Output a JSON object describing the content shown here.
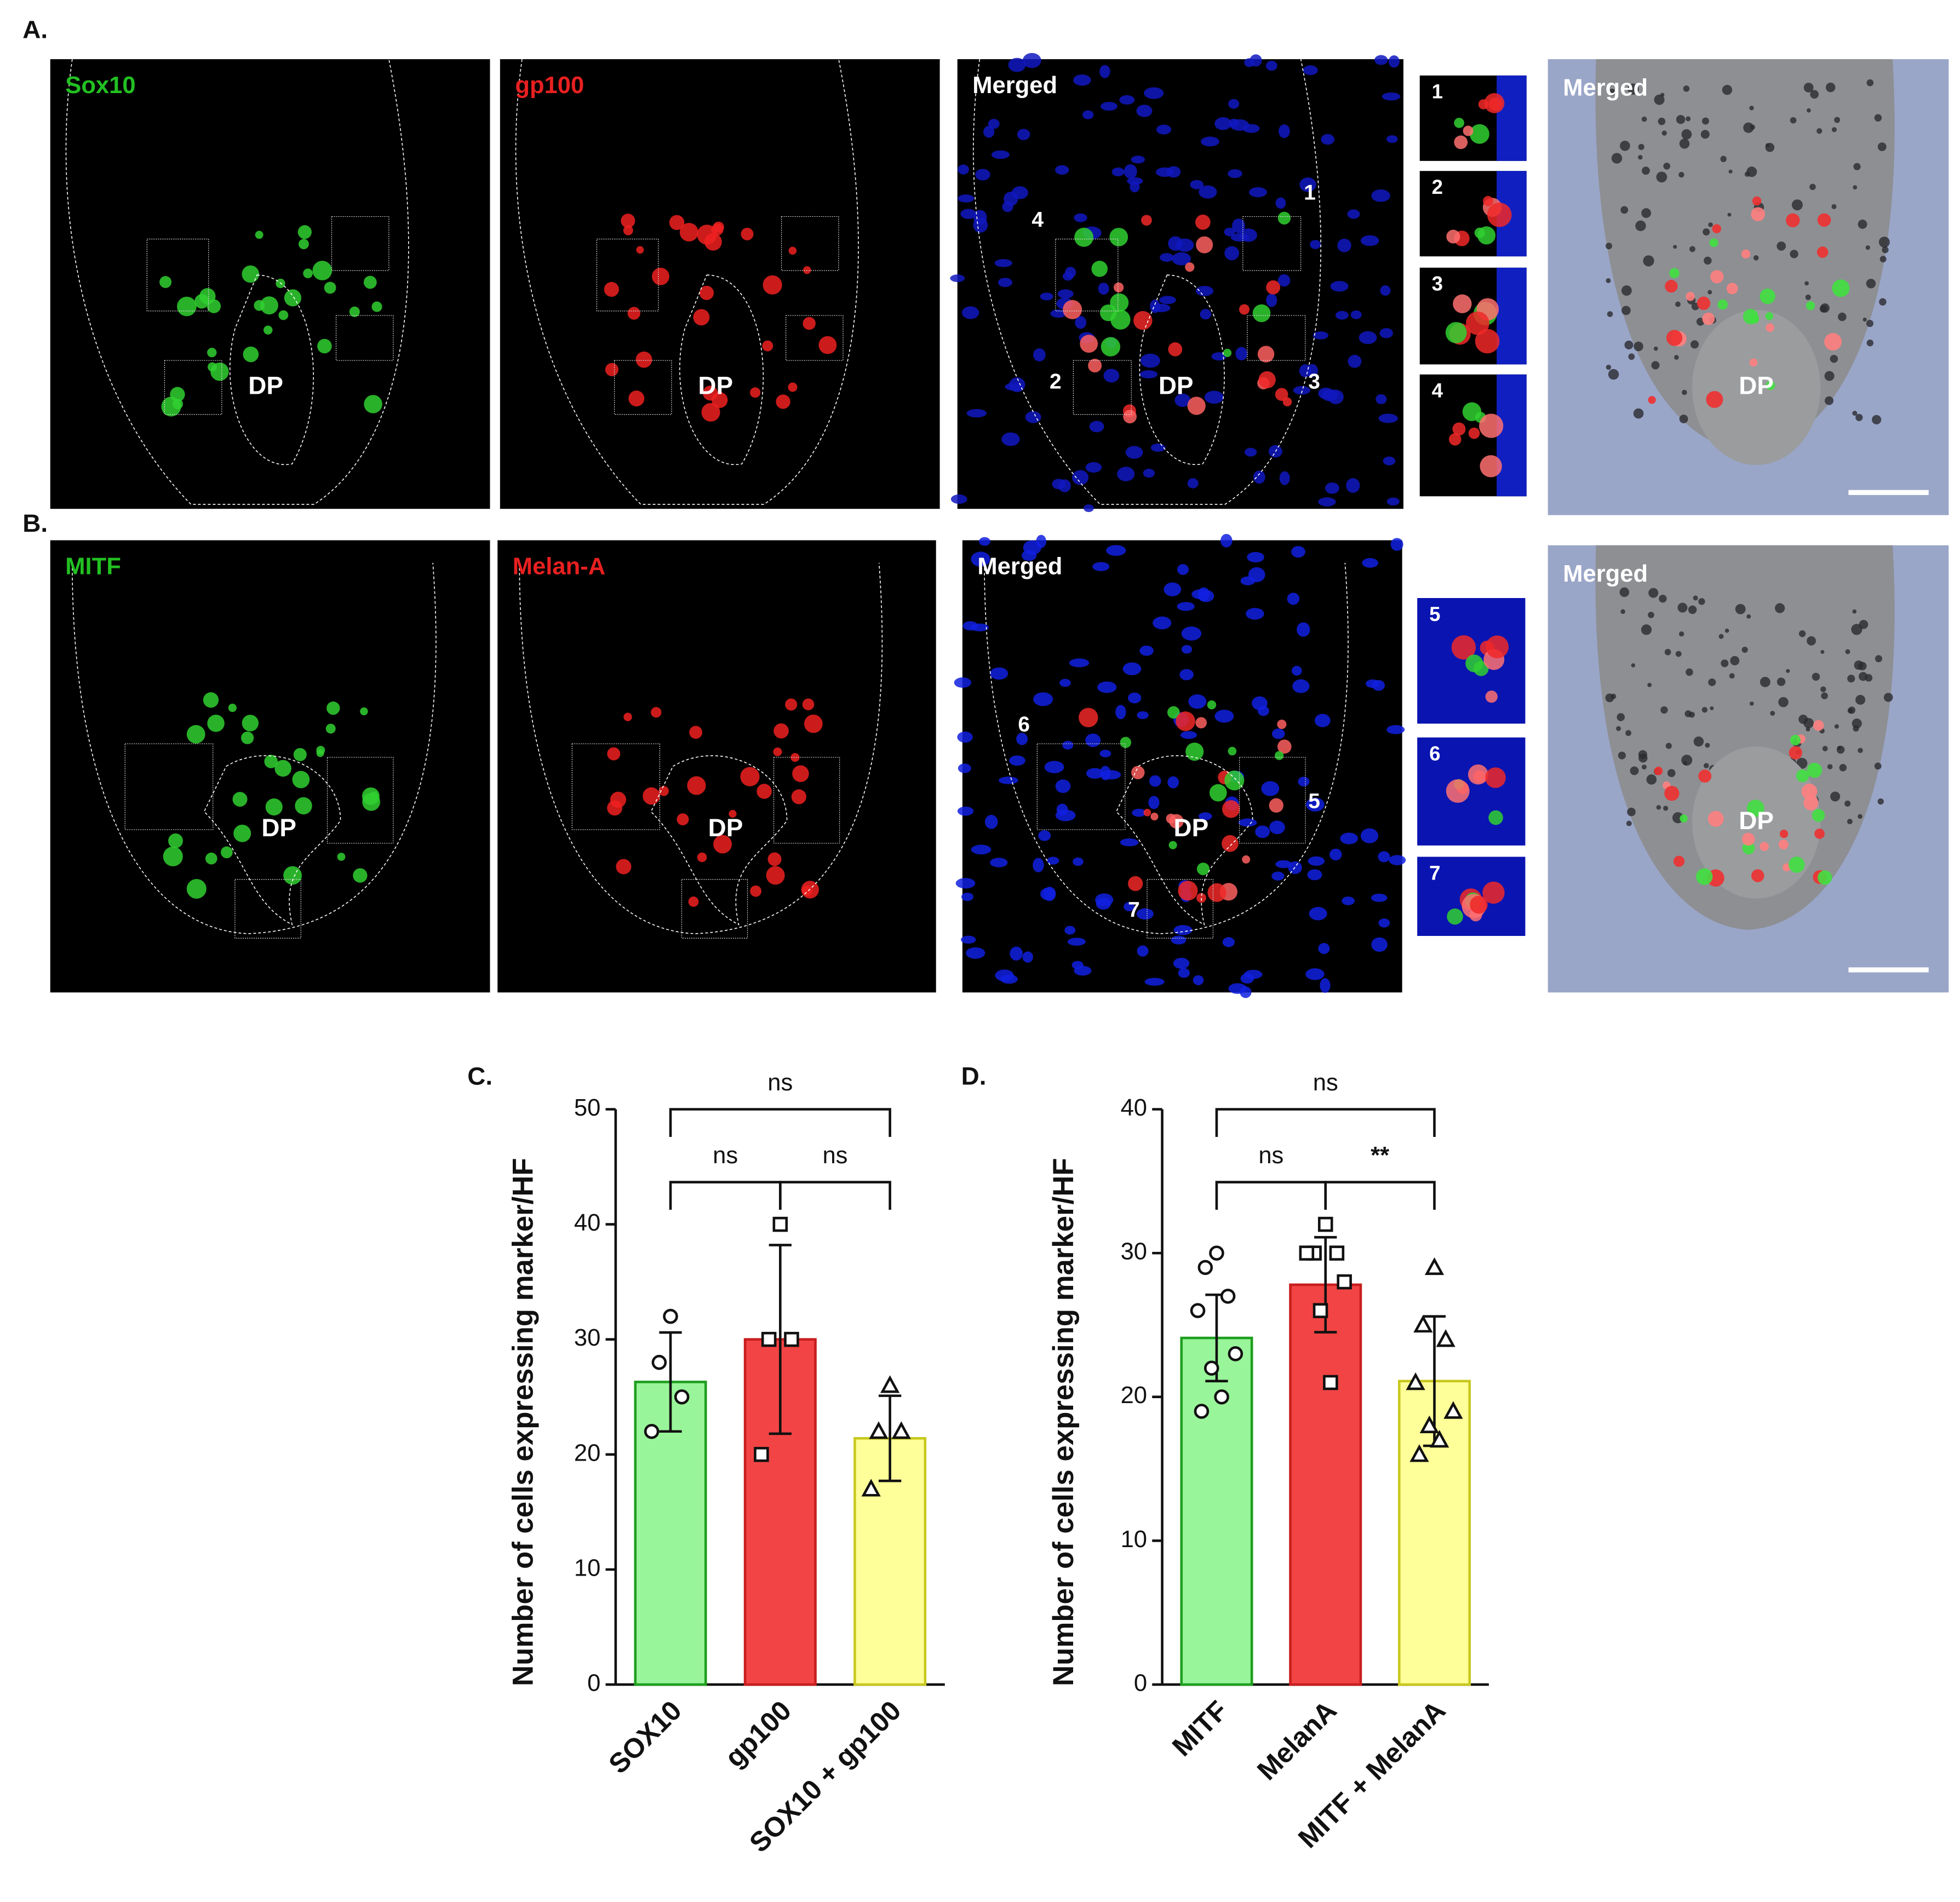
{
  "panels": [
    {
      "label": "A.",
      "images": [
        {
          "title": "Sox10",
          "title_color": "#22c022",
          "channel": "green",
          "dp": "DP"
        },
        {
          "title": "gp100",
          "title_color": "#e82020",
          "channel": "red",
          "dp": "DP"
        },
        {
          "title": "Merged",
          "title_color": "#ffffff",
          "channel": "merged",
          "dp": "DP",
          "box_labels": [
            "4",
            "2",
            "1",
            "3"
          ]
        }
      ],
      "insets": [
        "1",
        "2",
        "3",
        "4"
      ],
      "overlay": {
        "title": "Merged",
        "dp": "DP"
      }
    },
    {
      "label": "B.",
      "images": [
        {
          "title": "MITF",
          "title_color": "#22c022",
          "channel": "green",
          "dp": "DP"
        },
        {
          "title": "Melan-A",
          "title_color": "#e82020",
          "channel": "red",
          "dp": "DP"
        },
        {
          "title": "Merged",
          "title_color": "#ffffff",
          "channel": "merged",
          "dp": "DP",
          "box_labels": [
            "6",
            "5",
            "7"
          ]
        }
      ],
      "insets": [
        "5",
        "6",
        "7"
      ],
      "overlay": {
        "title": "Merged",
        "dp": "DP"
      }
    }
  ],
  "chart_data": [
    {
      "type": "bar",
      "panel_label": "C.",
      "y_label": "Number of cells expressing marker/HF",
      "categories": [
        "SOX10",
        "gp100",
        "SOX10 + gp100"
      ],
      "values": [
        26.3,
        30,
        21.4
      ],
      "errors": [
        4.3,
        8.2,
        3.7
      ],
      "colors": [
        "#99f599",
        "#f24444",
        "#ffff99"
      ],
      "edge_colors": [
        "#1e9e1e",
        "#c81e1e",
        "#c8c81e"
      ],
      "markers": [
        "circle",
        "square",
        "triangle"
      ],
      "points": [
        [
          32,
          28,
          25,
          22
        ],
        [
          40,
          30,
          30,
          20
        ],
        [
          26,
          22,
          22,
          17
        ]
      ],
      "ylim": [
        0,
        50
      ],
      "yticks": [
        0,
        10,
        20,
        30,
        40,
        50
      ],
      "comparisons": [
        {
          "from": 0,
          "to": 1,
          "label": "ns"
        },
        {
          "from": 1,
          "to": 2,
          "label": "ns"
        },
        {
          "from": 0,
          "to": 2,
          "label": "ns"
        }
      ]
    },
    {
      "type": "bar",
      "panel_label": "D.",
      "y_label": "Number of cells expressing marker/HF",
      "categories": [
        "MITF",
        "MelanA",
        "MITF + MelanA"
      ],
      "values": [
        24.1,
        27.8,
        21.1
      ],
      "errors": [
        3,
        3.3,
        4.5
      ],
      "colors": [
        "#99f599",
        "#f24444",
        "#ffff99"
      ],
      "edge_colors": [
        "#1e9e1e",
        "#c81e1e",
        "#c8c81e"
      ],
      "markers": [
        "circle",
        "square",
        "triangle"
      ],
      "points": [
        [
          30,
          29,
          27,
          26,
          23,
          22,
          20,
          19
        ],
        [
          32,
          30,
          30,
          30,
          28,
          26,
          21
        ],
        [
          29,
          25,
          24,
          21,
          19,
          18,
          17,
          16
        ]
      ],
      "ylim": [
        0,
        40
      ],
      "yticks": [
        0,
        10,
        20,
        30,
        40
      ],
      "comparisons": [
        {
          "from": 0,
          "to": 1,
          "label": "ns"
        },
        {
          "from": 1,
          "to": 2,
          "label": "**"
        },
        {
          "from": 0,
          "to": 2,
          "label": "ns"
        }
      ]
    }
  ]
}
